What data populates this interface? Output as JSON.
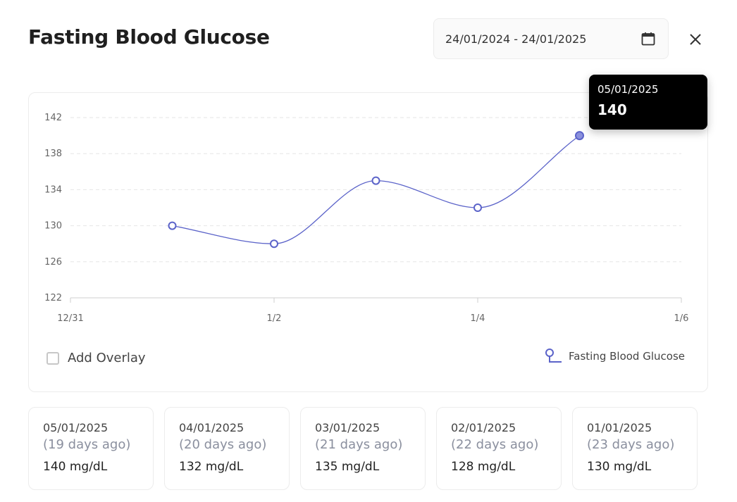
{
  "header": {
    "title": "Fasting Blood Glucose",
    "date_range": "24/01/2024 - 24/01/2025",
    "calendar_icon": "calendar-icon",
    "close_icon": "close-icon"
  },
  "chart_data": {
    "type": "line",
    "x_ticks": [
      "12/31",
      "1/2",
      "1/4",
      "1/6"
    ],
    "ylim": [
      122,
      142
    ],
    "y_ticks": [
      122,
      126,
      130,
      134,
      138,
      142
    ],
    "series": [
      {
        "name": "Fasting Blood Glucose",
        "x": [
          "2025-01-01",
          "2025-01-02",
          "2025-01-03",
          "2025-01-04",
          "2025-01-05"
        ],
        "values": [
          130,
          128,
          135,
          132,
          140
        ]
      }
    ],
    "grid": "horizontal-dashed",
    "legend_position": "bottom-right",
    "color": "#5b63c9"
  },
  "tooltip": {
    "date": "05/01/2025",
    "value": "140"
  },
  "overlay": {
    "label": "Add Overlay",
    "checked": false
  },
  "legend": {
    "label": "Fasting Blood Glucose"
  },
  "readings": [
    {
      "date": "05/01/2025",
      "ago": "(19 days ago)",
      "value": "140 mg/dL"
    },
    {
      "date": "04/01/2025",
      "ago": "(20 days ago)",
      "value": "132 mg/dL"
    },
    {
      "date": "03/01/2025",
      "ago": "(21 days ago)",
      "value": "135 mg/dL"
    },
    {
      "date": "02/01/2025",
      "ago": "(22 days ago)",
      "value": "128 mg/dL"
    },
    {
      "date": "01/01/2025",
      "ago": "(23 days ago)",
      "value": "130 mg/dL"
    }
  ]
}
